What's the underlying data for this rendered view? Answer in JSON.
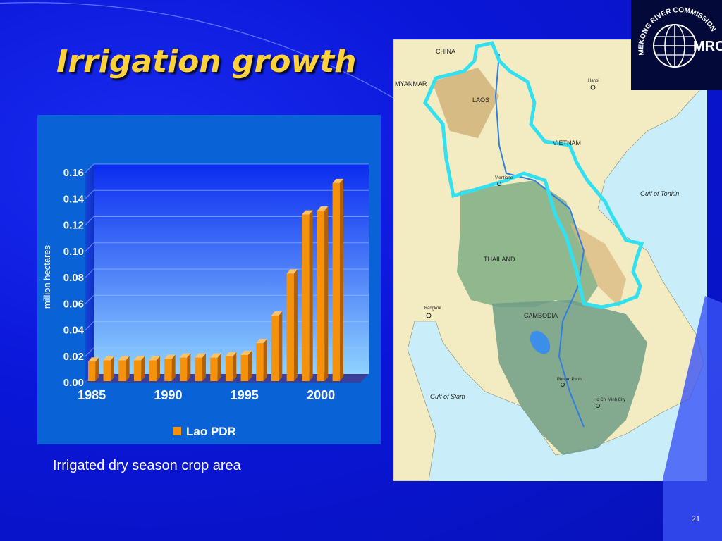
{
  "slide": {
    "title": "Irrigation growth",
    "caption": "Irrigated dry season crop area",
    "page_number": "21"
  },
  "colors": {
    "background": "#0a16d8",
    "title": "#ffd23a",
    "chart_panel": "#0a63d6",
    "bar": "#f5920a",
    "bar_top": "#ffc266",
    "bar_side": "#b45f00",
    "basin_outline": "#33e0f0"
  },
  "map": {
    "labels": {
      "china": "CHINA",
      "myanmar": "MYANMAR",
      "laos": "LAOS",
      "vietnam": "VIETNAM",
      "thailand": "THAILAND",
      "cambodia": "CAMBODIA",
      "gulf_tonkin": "Gulf of Tonkin",
      "gulf_siam": "Gulf of Siam",
      "hanoi": "Hanoi",
      "bangkok": "Bangkok",
      "hcmc": "Ho Chi Minh City",
      "phnom_penh": "Phnom Penh",
      "vientiane": "Vientiane"
    }
  },
  "logo": {
    "text": "MEKONG RIVER COMMISSION",
    "abbr": "MRC",
    "icon": "globe-icon"
  },
  "chart_data": {
    "type": "bar",
    "ylabel": "million hectares",
    "ylim": [
      0,
      0.16
    ],
    "yticks": [
      "0.00",
      "0.02",
      "0.04",
      "0.06",
      "0.08",
      "0.10",
      "0.12",
      "0.14",
      "0.16"
    ],
    "xtick_labels": [
      "1985",
      "1990",
      "1995",
      "2000"
    ],
    "x": [
      1985,
      1986,
      1987,
      1988,
      1989,
      1990,
      1991,
      1992,
      1993,
      1994,
      1995,
      1996,
      1997,
      1998,
      1999,
      2000,
      2001,
      2002
    ],
    "series": [
      {
        "name": "Lao PDR",
        "values": [
          0.016,
          0.017,
          0.017,
          0.017,
          0.017,
          0.018,
          0.019,
          0.019,
          0.019,
          0.02,
          0.021,
          0.03,
          0.051,
          0.083,
          0.128,
          0.131,
          0.152,
          0.0
        ]
      }
    ],
    "legend": "bottom",
    "grid": true
  }
}
